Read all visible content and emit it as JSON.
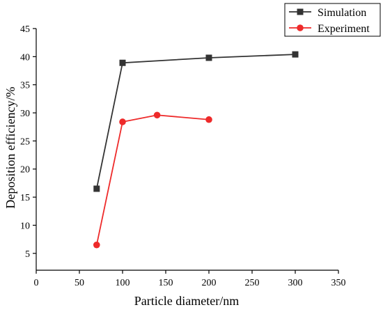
{
  "chart_data": {
    "type": "line",
    "title": "",
    "xlabel": "Particle diameter/nm",
    "ylabel": "Deposition efficiency/%",
    "xlim": [
      0,
      350
    ],
    "ylim": [
      2,
      45
    ],
    "xticks": [
      0,
      50,
      100,
      150,
      200,
      250,
      300,
      350
    ],
    "yticks": [
      5,
      10,
      15,
      20,
      25,
      30,
      35,
      40,
      45
    ],
    "grid": false,
    "legend_position": "top-right",
    "series": [
      {
        "name": "Simulation",
        "color": "#333333",
        "marker": "square",
        "x": [
          70,
          100,
          200,
          300
        ],
        "y": [
          16.5,
          38.9,
          39.8,
          40.4
        ]
      },
      {
        "name": "Experiment",
        "color": "#ee2a2a",
        "marker": "circle",
        "x": [
          70,
          100,
          140,
          200
        ],
        "y": [
          6.5,
          28.4,
          29.6,
          28.8
        ]
      }
    ]
  }
}
